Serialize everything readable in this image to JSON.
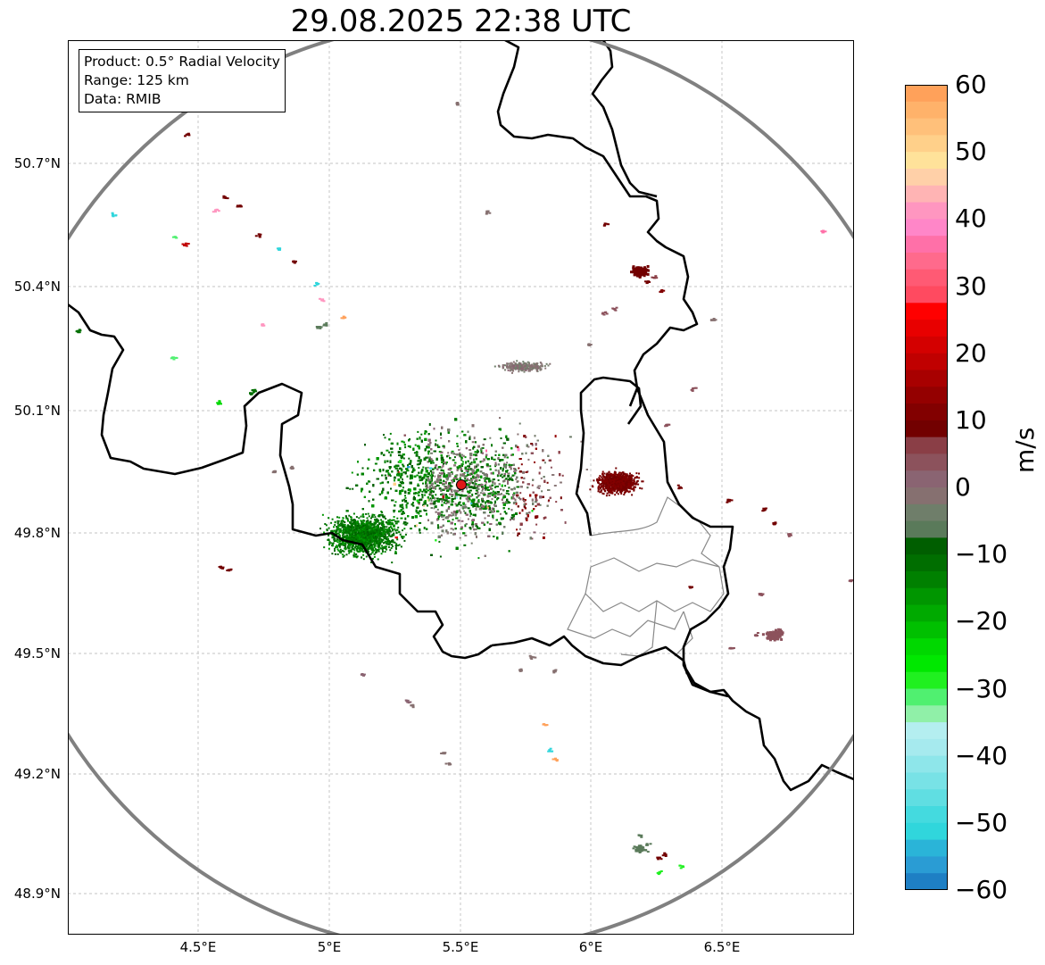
{
  "title": "29.08.2025 22:38 UTC",
  "info_box": {
    "product": "Product: 0.5° Radial Velocity",
    "range": "Range: 125 km",
    "data": "Data: RMIB"
  },
  "map": {
    "y_ticks": [
      "50.7°N",
      "50.4°N",
      "50.1°N",
      "49.8°N",
      "49.5°N",
      "49.2°N",
      "48.9°N"
    ],
    "x_ticks": [
      "4.5°E",
      "5°E",
      "5.5°E",
      "6°E",
      "6.5°E"
    ],
    "lon_range": [
      4.0,
      7.0
    ],
    "lat_range": [
      48.82,
      50.99
    ],
    "radar_site": {
      "lon": 5.505,
      "lat": 49.915
    },
    "range_ring_color": "#808080",
    "border_color": "#000000",
    "marker_color": "#e01818"
  },
  "colorbar": {
    "label": "m/s",
    "ticks": [
      "60",
      "50",
      "40",
      "30",
      "20",
      "10",
      "0",
      "−10",
      "−20",
      "−30",
      "−40",
      "−50",
      "−60"
    ],
    "range": [
      -60,
      60
    ],
    "colors_top_to_bottom": [
      "#ffa15a",
      "#ffb26a",
      "#ffc07a",
      "#ffd08a",
      "#ffe29a",
      "#ffd0a8",
      "#ffb4b4",
      "#ff96c0",
      "#ff86c8",
      "#ff70a8",
      "#ff6a8c",
      "#ff5a74",
      "#ff4a60",
      "#ff0000",
      "#e80000",
      "#d40000",
      "#c00000",
      "#a80000",
      "#940000",
      "#820000",
      "#720000",
      "#8a3e46",
      "#8c525c",
      "#8a6472",
      "#867070",
      "#6f7e6a",
      "#5a7a5a",
      "#005e00",
      "#006e00",
      "#008000",
      "#009600",
      "#00aa00",
      "#00c000",
      "#00d800",
      "#00e800",
      "#20f020",
      "#50f070",
      "#90f0a8",
      "#b4eef0",
      "#a6eaee",
      "#8ee6ea",
      "#78e2e6",
      "#60dee2",
      "#44dadf",
      "#30d6dc",
      "#2ab4d8",
      "#2a9cd4",
      "#1e7fc4"
    ]
  }
}
